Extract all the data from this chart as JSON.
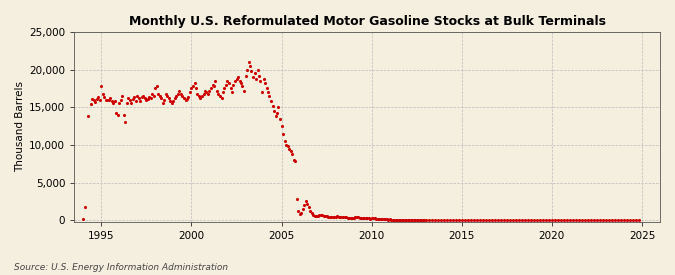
{
  "title": "Monthly U.S. Reformulated Motor Gasoline Stocks at Bulk Terminals",
  "ylabel": "Thousand Barrels",
  "source": "Source: U.S. Energy Information Administration",
  "bg_color": "#F5EFE0",
  "plot_bg_color": "#F5EFE0",
  "dot_color": "#CC0000",
  "dot_size": 5,
  "xlim": [
    1993.5,
    2026.0
  ],
  "ylim": [
    -200,
    25000
  ],
  "yticks": [
    0,
    5000,
    10000,
    15000,
    20000,
    25000
  ],
  "xticks": [
    1995,
    2000,
    2005,
    2010,
    2015,
    2020,
    2025
  ],
  "data": [
    [
      1994.0,
      100
    ],
    [
      1994.08,
      1700
    ],
    [
      1994.25,
      13800
    ],
    [
      1994.42,
      15400
    ],
    [
      1994.5,
      16100
    ],
    [
      1994.58,
      15900
    ],
    [
      1994.67,
      15700
    ],
    [
      1994.75,
      16100
    ],
    [
      1994.83,
      16300
    ],
    [
      1994.92,
      16000
    ],
    [
      1995.0,
      17800
    ],
    [
      1995.08,
      16800
    ],
    [
      1995.17,
      16400
    ],
    [
      1995.25,
      16000
    ],
    [
      1995.33,
      15900
    ],
    [
      1995.42,
      16000
    ],
    [
      1995.5,
      16200
    ],
    [
      1995.58,
      15800
    ],
    [
      1995.67,
      15600
    ],
    [
      1995.75,
      15800
    ],
    [
      1995.83,
      14200
    ],
    [
      1995.92,
      14000
    ],
    [
      1996.0,
      15600
    ],
    [
      1996.08,
      16000
    ],
    [
      1996.17,
      16500
    ],
    [
      1996.25,
      14000
    ],
    [
      1996.33,
      13000
    ],
    [
      1996.42,
      15500
    ],
    [
      1996.5,
      16200
    ],
    [
      1996.58,
      16000
    ],
    [
      1996.67,
      15600
    ],
    [
      1996.75,
      16100
    ],
    [
      1996.83,
      16300
    ],
    [
      1996.92,
      15800
    ],
    [
      1997.0,
      16500
    ],
    [
      1997.08,
      16200
    ],
    [
      1997.17,
      15800
    ],
    [
      1997.25,
      16400
    ],
    [
      1997.33,
      16500
    ],
    [
      1997.42,
      16200
    ],
    [
      1997.5,
      15900
    ],
    [
      1997.58,
      16100
    ],
    [
      1997.67,
      16400
    ],
    [
      1997.75,
      16200
    ],
    [
      1997.83,
      16700
    ],
    [
      1997.92,
      16500
    ],
    [
      1998.0,
      17500
    ],
    [
      1998.08,
      17800
    ],
    [
      1998.17,
      16800
    ],
    [
      1998.25,
      16500
    ],
    [
      1998.33,
      16200
    ],
    [
      1998.42,
      15500
    ],
    [
      1998.5,
      16000
    ],
    [
      1998.58,
      16800
    ],
    [
      1998.67,
      16500
    ],
    [
      1998.75,
      16200
    ],
    [
      1998.83,
      15800
    ],
    [
      1998.92,
      15500
    ],
    [
      1999.0,
      15800
    ],
    [
      1999.08,
      16200
    ],
    [
      1999.17,
      16500
    ],
    [
      1999.25,
      16800
    ],
    [
      1999.33,
      17200
    ],
    [
      1999.42,
      16800
    ],
    [
      1999.5,
      16500
    ],
    [
      1999.58,
      16200
    ],
    [
      1999.67,
      15900
    ],
    [
      1999.75,
      16100
    ],
    [
      1999.83,
      16400
    ],
    [
      1999.92,
      17000
    ],
    [
      2000.0,
      17500
    ],
    [
      2000.08,
      17800
    ],
    [
      2000.17,
      18200
    ],
    [
      2000.25,
      17500
    ],
    [
      2000.33,
      16800
    ],
    [
      2000.42,
      16500
    ],
    [
      2000.5,
      16200
    ],
    [
      2000.58,
      16500
    ],
    [
      2000.67,
      16800
    ],
    [
      2000.75,
      17200
    ],
    [
      2000.83,
      17000
    ],
    [
      2000.92,
      16800
    ],
    [
      2001.0,
      17200
    ],
    [
      2001.08,
      17500
    ],
    [
      2001.17,
      18000
    ],
    [
      2001.25,
      17800
    ],
    [
      2001.33,
      18500
    ],
    [
      2001.42,
      17200
    ],
    [
      2001.5,
      16800
    ],
    [
      2001.58,
      16500
    ],
    [
      2001.67,
      16200
    ],
    [
      2001.75,
      17000
    ],
    [
      2001.83,
      17500
    ],
    [
      2001.92,
      18000
    ],
    [
      2002.0,
      18500
    ],
    [
      2002.08,
      18200
    ],
    [
      2002.17,
      17500
    ],
    [
      2002.25,
      17000
    ],
    [
      2002.33,
      18000
    ],
    [
      2002.42,
      18500
    ],
    [
      2002.5,
      18800
    ],
    [
      2002.58,
      19000
    ],
    [
      2002.67,
      18500
    ],
    [
      2002.75,
      18200
    ],
    [
      2002.83,
      17800
    ],
    [
      2002.92,
      17200
    ],
    [
      2003.0,
      19200
    ],
    [
      2003.08,
      20000
    ],
    [
      2003.17,
      21000
    ],
    [
      2003.25,
      20500
    ],
    [
      2003.33,
      19800
    ],
    [
      2003.42,
      19000
    ],
    [
      2003.5,
      19500
    ],
    [
      2003.58,
      18800
    ],
    [
      2003.67,
      20000
    ],
    [
      2003.75,
      19200
    ],
    [
      2003.83,
      18500
    ],
    [
      2003.92,
      17000
    ],
    [
      2004.0,
      18800
    ],
    [
      2004.08,
      18200
    ],
    [
      2004.17,
      17500
    ],
    [
      2004.25,
      17000
    ],
    [
      2004.33,
      16500
    ],
    [
      2004.42,
      15800
    ],
    [
      2004.5,
      15200
    ],
    [
      2004.58,
      14500
    ],
    [
      2004.67,
      13800
    ],
    [
      2004.75,
      14200
    ],
    [
      2004.83,
      15000
    ],
    [
      2004.92,
      13500
    ],
    [
      2005.0,
      12500
    ],
    [
      2005.08,
      11500
    ],
    [
      2005.17,
      10500
    ],
    [
      2005.25,
      10000
    ],
    [
      2005.33,
      9800
    ],
    [
      2005.42,
      9500
    ],
    [
      2005.5,
      9200
    ],
    [
      2005.58,
      8800
    ],
    [
      2005.67,
      8000
    ],
    [
      2005.75,
      7800
    ],
    [
      2005.83,
      2800
    ],
    [
      2005.92,
      1200
    ],
    [
      2006.0,
      800
    ],
    [
      2006.08,
      1000
    ],
    [
      2006.17,
      1500
    ],
    [
      2006.25,
      2000
    ],
    [
      2006.33,
      2500
    ],
    [
      2006.42,
      2200
    ],
    [
      2006.5,
      1800
    ],
    [
      2006.58,
      1200
    ],
    [
      2006.67,
      900
    ],
    [
      2006.75,
      700
    ],
    [
      2006.83,
      600
    ],
    [
      2006.92,
      500
    ],
    [
      2007.0,
      600
    ],
    [
      2007.08,
      700
    ],
    [
      2007.17,
      750
    ],
    [
      2007.25,
      650
    ],
    [
      2007.33,
      600
    ],
    [
      2007.42,
      550
    ],
    [
      2007.5,
      500
    ],
    [
      2007.58,
      480
    ],
    [
      2007.67,
      460
    ],
    [
      2007.75,
      440
    ],
    [
      2007.83,
      420
    ],
    [
      2007.92,
      400
    ],
    [
      2008.0,
      450
    ],
    [
      2008.08,
      500
    ],
    [
      2008.17,
      480
    ],
    [
      2008.25,
      460
    ],
    [
      2008.33,
      440
    ],
    [
      2008.42,
      420
    ],
    [
      2008.5,
      400
    ],
    [
      2008.58,
      380
    ],
    [
      2008.67,
      360
    ],
    [
      2008.75,
      340
    ],
    [
      2008.83,
      320
    ],
    [
      2008.92,
      300
    ],
    [
      2009.0,
      350
    ],
    [
      2009.08,
      380
    ],
    [
      2009.17,
      400
    ],
    [
      2009.25,
      380
    ],
    [
      2009.33,
      360
    ],
    [
      2009.42,
      340
    ],
    [
      2009.5,
      320
    ],
    [
      2009.58,
      300
    ],
    [
      2009.67,
      280
    ],
    [
      2009.75,
      260
    ],
    [
      2009.83,
      240
    ],
    [
      2009.92,
      220
    ],
    [
      2010.0,
      280
    ],
    [
      2010.08,
      260
    ],
    [
      2010.17,
      240
    ],
    [
      2010.25,
      220
    ],
    [
      2010.33,
      200
    ],
    [
      2010.42,
      180
    ],
    [
      2010.5,
      160
    ],
    [
      2010.58,
      140
    ],
    [
      2010.67,
      120
    ],
    [
      2010.75,
      110
    ],
    [
      2010.83,
      100
    ],
    [
      2010.92,
      90
    ],
    [
      2011.0,
      100
    ],
    [
      2011.08,
      95
    ],
    [
      2011.17,
      90
    ],
    [
      2011.25,
      85
    ],
    [
      2011.33,
      80
    ],
    [
      2011.42,
      75
    ],
    [
      2011.5,
      70
    ],
    [
      2011.58,
      65
    ],
    [
      2011.67,
      60
    ],
    [
      2011.75,
      55
    ],
    [
      2011.83,
      50
    ],
    [
      2011.92,
      45
    ],
    [
      2012.0,
      60
    ],
    [
      2012.08,
      55
    ],
    [
      2012.17,
      50
    ],
    [
      2012.25,
      45
    ],
    [
      2012.33,
      40
    ],
    [
      2012.42,
      35
    ],
    [
      2012.5,
      30
    ],
    [
      2012.58,
      25
    ],
    [
      2012.67,
      20
    ],
    [
      2012.75,
      15
    ],
    [
      2012.83,
      12
    ],
    [
      2012.92,
      10
    ],
    [
      2013.0,
      15
    ],
    [
      2013.17,
      12
    ],
    [
      2013.33,
      10
    ],
    [
      2013.5,
      8
    ],
    [
      2013.67,
      6
    ],
    [
      2013.83,
      5
    ],
    [
      2014.0,
      5
    ],
    [
      2014.17,
      4
    ],
    [
      2014.33,
      4
    ],
    [
      2014.5,
      3
    ],
    [
      2014.67,
      3
    ],
    [
      2014.83,
      3
    ],
    [
      2015.0,
      3
    ],
    [
      2015.17,
      3
    ],
    [
      2015.33,
      2
    ],
    [
      2015.5,
      2
    ],
    [
      2015.67,
      2
    ],
    [
      2015.83,
      2
    ],
    [
      2016.0,
      2
    ],
    [
      2016.17,
      2
    ],
    [
      2016.33,
      2
    ],
    [
      2016.5,
      2
    ],
    [
      2016.67,
      2
    ],
    [
      2016.83,
      2
    ],
    [
      2017.0,
      2
    ],
    [
      2017.17,
      2
    ],
    [
      2017.33,
      2
    ],
    [
      2017.5,
      2
    ],
    [
      2017.67,
      2
    ],
    [
      2017.83,
      2
    ],
    [
      2018.0,
      2
    ],
    [
      2018.17,
      2
    ],
    [
      2018.33,
      2
    ],
    [
      2018.5,
      2
    ],
    [
      2018.67,
      2
    ],
    [
      2018.83,
      2
    ],
    [
      2019.0,
      2
    ],
    [
      2019.17,
      2
    ],
    [
      2019.33,
      2
    ],
    [
      2019.5,
      2
    ],
    [
      2019.67,
      2
    ],
    [
      2019.83,
      2
    ],
    [
      2020.0,
      2
    ],
    [
      2020.17,
      2
    ],
    [
      2020.33,
      2
    ],
    [
      2020.5,
      2
    ],
    [
      2020.67,
      2
    ],
    [
      2020.83,
      2
    ],
    [
      2021.0,
      2
    ],
    [
      2021.17,
      2
    ],
    [
      2021.33,
      2
    ],
    [
      2021.5,
      2
    ],
    [
      2021.67,
      2
    ],
    [
      2021.83,
      2
    ],
    [
      2022.0,
      2
    ],
    [
      2022.17,
      2
    ],
    [
      2022.33,
      2
    ],
    [
      2022.5,
      2
    ],
    [
      2022.67,
      2
    ],
    [
      2022.83,
      2
    ],
    [
      2023.0,
      2
    ],
    [
      2023.17,
      2
    ],
    [
      2023.33,
      2
    ],
    [
      2023.5,
      2
    ],
    [
      2023.67,
      2
    ],
    [
      2023.83,
      2
    ],
    [
      2024.0,
      2
    ],
    [
      2024.17,
      2
    ],
    [
      2024.33,
      2
    ],
    [
      2024.5,
      2
    ],
    [
      2024.67,
      2
    ],
    [
      2024.83,
      60
    ]
  ]
}
